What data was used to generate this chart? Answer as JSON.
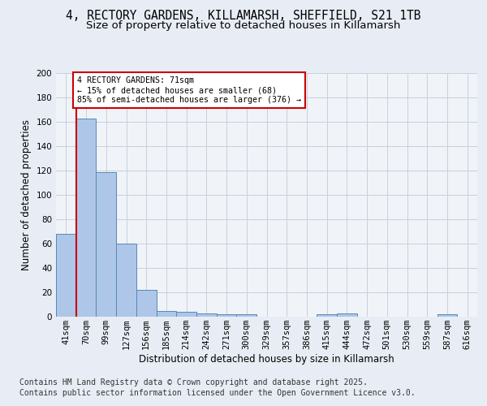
{
  "title_line1": "4, RECTORY GARDENS, KILLAMARSH, SHEFFIELD, S21 1TB",
  "title_line2": "Size of property relative to detached houses in Killamarsh",
  "xlabel": "Distribution of detached houses by size in Killamarsh",
  "ylabel": "Number of detached properties",
  "categories": [
    "41sqm",
    "70sqm",
    "99sqm",
    "127sqm",
    "156sqm",
    "185sqm",
    "214sqm",
    "242sqm",
    "271sqm",
    "300sqm",
    "329sqm",
    "357sqm",
    "386sqm",
    "415sqm",
    "444sqm",
    "472sqm",
    "501sqm",
    "530sqm",
    "559sqm",
    "587sqm",
    "616sqm"
  ],
  "values": [
    68,
    163,
    119,
    60,
    22,
    5,
    4,
    3,
    2,
    2,
    0,
    0,
    0,
    2,
    3,
    0,
    0,
    0,
    0,
    2,
    0
  ],
  "bar_color": "#aec6e8",
  "bar_edge_color": "#5589b8",
  "annotation_text": "4 RECTORY GARDENS: 71sqm\n← 15% of detached houses are smaller (68)\n85% of semi-detached houses are larger (376) →",
  "annotation_box_color": "#ffffff",
  "annotation_box_edge": "#cc0000",
  "subject_line_color": "#cc0000",
  "ylim": [
    0,
    200
  ],
  "yticks": [
    0,
    20,
    40,
    60,
    80,
    100,
    120,
    140,
    160,
    180,
    200
  ],
  "footer_line1": "Contains HM Land Registry data © Crown copyright and database right 2025.",
  "footer_line2": "Contains public sector information licensed under the Open Government Licence v3.0.",
  "bg_color": "#e8edf5",
  "plot_bg_color": "#f0f3f8",
  "grid_color": "#c8d0de",
  "title_fontsize": 10.5,
  "subtitle_fontsize": 9.5,
  "axis_label_fontsize": 8.5,
  "tick_fontsize": 7.5,
  "footer_fontsize": 7.0
}
